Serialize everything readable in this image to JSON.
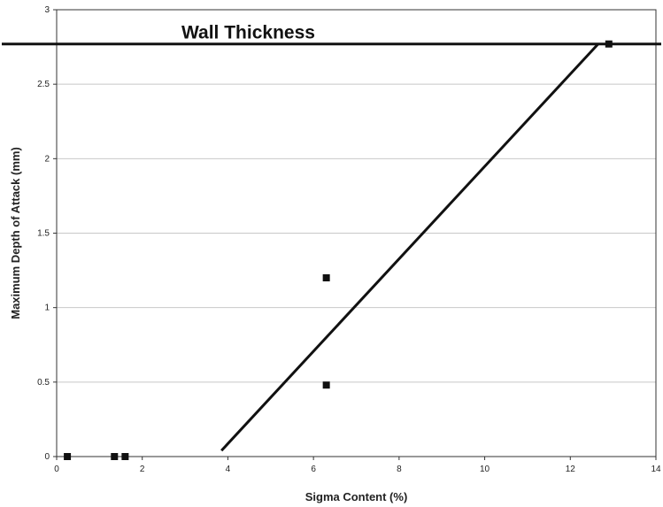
{
  "chart_data": {
    "type": "scatter",
    "xlabel": "Sigma Content (%)",
    "ylabel": "Maximum Depth of Attack (mm)",
    "xlim": [
      0,
      14
    ],
    "ylim": [
      0,
      3
    ],
    "x_ticks": [
      0,
      2,
      4,
      6,
      8,
      10,
      12,
      14
    ],
    "y_ticks": [
      0,
      0.5,
      1,
      1.5,
      2,
      2.5,
      3
    ],
    "x_tick_labels": [
      "0",
      "2",
      "4",
      "6",
      "8",
      "10",
      "12",
      "14"
    ],
    "y_tick_labels": [
      "0",
      "0.5",
      "1",
      "1.5",
      "2",
      "2.5",
      "3"
    ],
    "grid": "horizontal",
    "points": [
      {
        "x": 0.25,
        "y": 0.0
      },
      {
        "x": 1.35,
        "y": 0.0
      },
      {
        "x": 1.6,
        "y": 0.0
      },
      {
        "x": 6.3,
        "y": 1.2
      },
      {
        "x": 6.3,
        "y": 0.48
      },
      {
        "x": 12.9,
        "y": 2.77
      }
    ],
    "trend_line": {
      "x": [
        3.85,
        12.65
      ],
      "y": [
        0.04,
        2.77
      ]
    },
    "annotations": [
      {
        "text": "Wall Thickness",
        "y": 2.77
      }
    ],
    "colors": {
      "marker": "#111111",
      "line": "#111111",
      "grid": "#c8c8c8",
      "axis": "#333333"
    }
  }
}
